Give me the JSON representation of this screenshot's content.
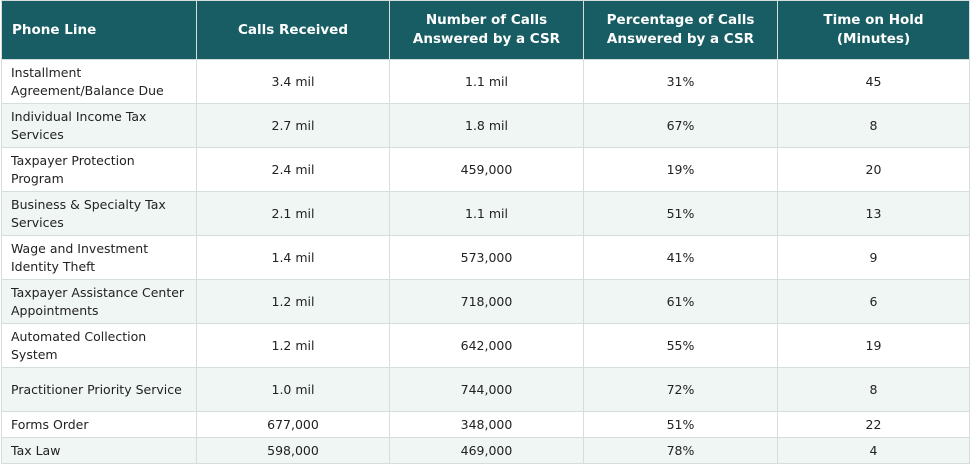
{
  "table": {
    "headers": [
      "Phone Line",
      "Calls Received",
      "Number of Calls Answered by a CSR",
      "Percentage of Calls Answered by a CSR",
      "Time on Hold (Minutes)"
    ],
    "rows": [
      [
        "Installment Agreement/Balance Due",
        "3.4 mil",
        "1.1 mil",
        "31%",
        "45"
      ],
      [
        "Individual Income Tax Services",
        "2.7 mil",
        "1.8 mil",
        "67%",
        "8"
      ],
      [
        "Taxpayer Protection Program",
        "2.4 mil",
        "459,000",
        "19%",
        "20"
      ],
      [
        "Business & Specialty Tax Services",
        "2.1 mil",
        "1.1 mil",
        "51%",
        "13"
      ],
      [
        "Wage and Investment Identity Theft",
        "1.4 mil",
        "573,000",
        "41%",
        "9"
      ],
      [
        "Taxpayer Assistance Center Appointments",
        "1.2 mil",
        "718,000",
        "61%",
        "6"
      ],
      [
        "Automated Collection System",
        "1.2 mil",
        "642,000",
        "55%",
        "19"
      ],
      [
        "Practitioner Priority Service",
        "1.0 mil",
        "744,000",
        "72%",
        "8"
      ],
      [
        "Forms Order",
        "677,000",
        "348,000",
        "51%",
        "22"
      ],
      [
        "Tax Law",
        "598,000",
        "469,000",
        "78%",
        "4"
      ]
    ]
  }
}
